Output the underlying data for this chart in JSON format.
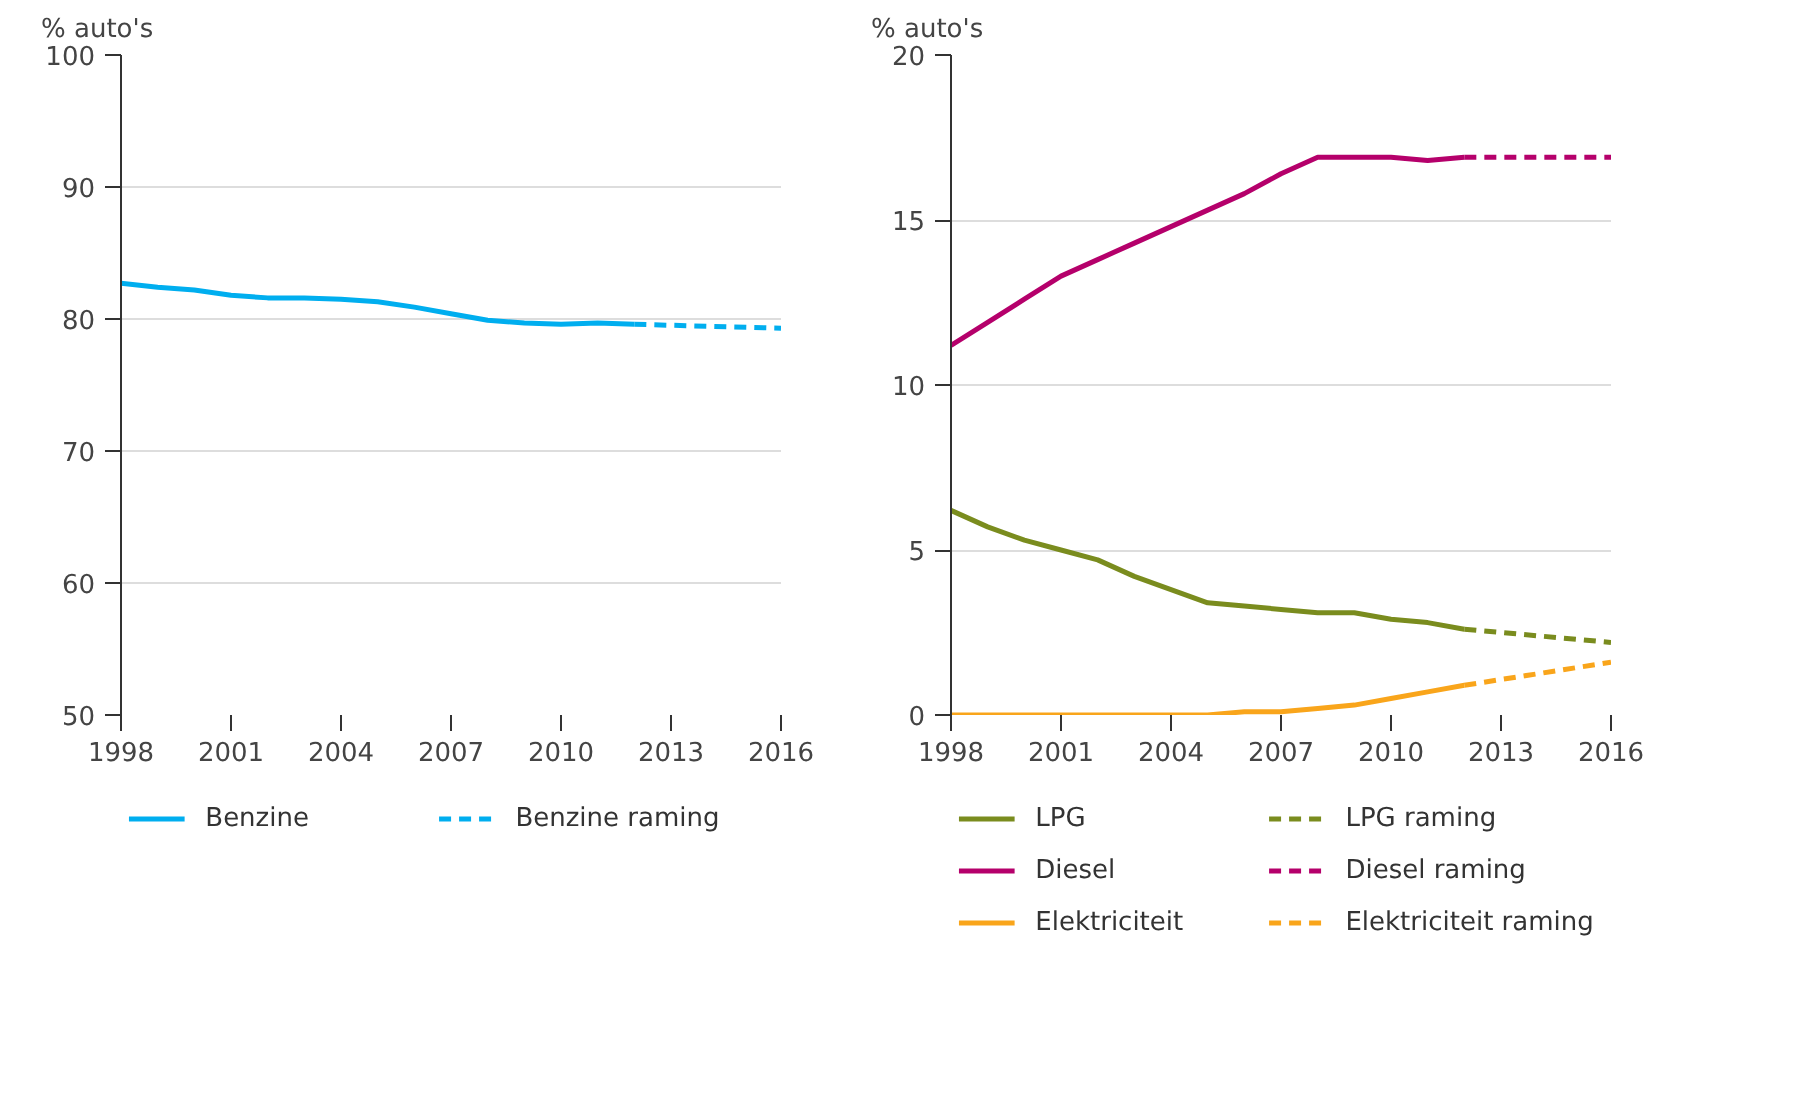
{
  "chart_data": [
    {
      "type": "line",
      "ylabel": "% auto's",
      "xlim": [
        1998,
        2016
      ],
      "xticks": [
        1998,
        2001,
        2004,
        2007,
        2010,
        2013,
        2016
      ],
      "ylim": [
        50,
        100
      ],
      "yticks": [
        50,
        60,
        70,
        80,
        90,
        100
      ],
      "grid": "y",
      "legend": "bottom",
      "series": [
        {
          "name": "Benzine",
          "color": "#00aeef",
          "line_style": "solid",
          "x": [
            1998,
            1999,
            2000,
            2001,
            2002,
            2003,
            2004,
            2005,
            2006,
            2007,
            2008,
            2009,
            2010,
            2011,
            2012
          ],
          "values": [
            82.7,
            82.4,
            82.2,
            81.8,
            81.6,
            81.6,
            81.5,
            81.3,
            80.9,
            80.4,
            79.9,
            79.7,
            79.6,
            79.7,
            79.6
          ]
        },
        {
          "name": "Benzine raming",
          "color": "#00aeef",
          "line_style": "dashed",
          "x": [
            2012,
            2016
          ],
          "values": [
            79.6,
            79.3
          ]
        }
      ]
    },
    {
      "type": "line",
      "ylabel": "% auto's",
      "xlim": [
        1998,
        2016
      ],
      "xticks": [
        1998,
        2001,
        2004,
        2007,
        2010,
        2013,
        2016
      ],
      "ylim": [
        0,
        20
      ],
      "yticks": [
        0,
        5,
        10,
        15,
        20
      ],
      "grid": "y",
      "legend": "bottom",
      "series": [
        {
          "name": "LPG",
          "color": "#7a8c1e",
          "line_style": "solid",
          "x": [
            1998,
            1999,
            2000,
            2001,
            2002,
            2003,
            2004,
            2005,
            2006,
            2007,
            2008,
            2009,
            2010,
            2011,
            2012
          ],
          "values": [
            6.2,
            5.7,
            5.3,
            5.0,
            4.7,
            4.2,
            3.8,
            3.4,
            3.3,
            3.2,
            3.1,
            3.1,
            2.9,
            2.8,
            2.6
          ]
        },
        {
          "name": "LPG raming",
          "color": "#7a8c1e",
          "line_style": "dashed",
          "x": [
            2012,
            2016
          ],
          "values": [
            2.6,
            2.2
          ]
        },
        {
          "name": "Diesel",
          "color": "#b5006b",
          "line_style": "solid",
          "x": [
            1998,
            1999,
            2000,
            2001,
            2002,
            2003,
            2004,
            2005,
            2006,
            2007,
            2008,
            2009,
            2010,
            2011,
            2012
          ],
          "values": [
            11.2,
            11.9,
            12.6,
            13.3,
            13.8,
            14.3,
            14.8,
            15.3,
            15.8,
            16.4,
            16.9,
            16.9,
            16.9,
            16.8,
            16.9
          ]
        },
        {
          "name": "Diesel raming",
          "color": "#b5006b",
          "line_style": "dashed",
          "x": [
            2012,
            2016
          ],
          "values": [
            16.9,
            16.9
          ]
        },
        {
          "name": "Elektriciteit",
          "color": "#f9a51b",
          "line_style": "solid",
          "x": [
            1998,
            1999,
            2000,
            2001,
            2002,
            2003,
            2004,
            2005,
            2006,
            2007,
            2008,
            2009,
            2010,
            2011,
            2012
          ],
          "values": [
            0,
            0,
            0,
            0,
            0,
            0,
            0,
            0,
            0.1,
            0.1,
            0.2,
            0.3,
            0.5,
            0.7,
            0.9
          ]
        },
        {
          "name": "Elektriciteit raming",
          "color": "#f9a51b",
          "line_style": "dashed",
          "x": [
            2012,
            2016
          ],
          "values": [
            0.9,
            1.6
          ]
        }
      ]
    }
  ]
}
